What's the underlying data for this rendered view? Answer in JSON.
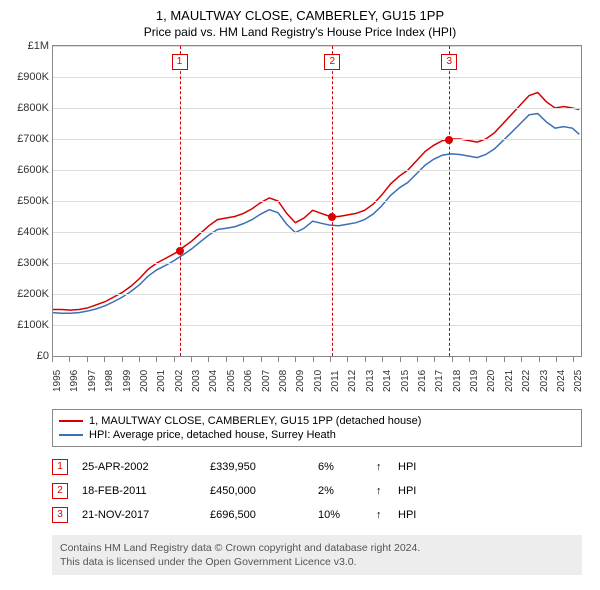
{
  "title": "1, MAULTWAY CLOSE, CAMBERLEY, GU15 1PP",
  "subtitle": "Price paid vs. HM Land Registry's House Price Index (HPI)",
  "chart": {
    "type": "line",
    "background_color": "#ffffff",
    "grid_color": "#dddddd",
    "border_color": "#888888",
    "x_years": [
      1995,
      1996,
      1997,
      1998,
      1999,
      2000,
      2001,
      2002,
      2003,
      2004,
      2005,
      2006,
      2007,
      2008,
      2009,
      2010,
      2011,
      2012,
      2013,
      2014,
      2015,
      2016,
      2017,
      2018,
      2019,
      2020,
      2021,
      2022,
      2023,
      2024,
      2025
    ],
    "xlim": [
      1995,
      2025.5
    ],
    "ylim": [
      0,
      1000000
    ],
    "ytick_step": 100000,
    "yticks": [
      "£0",
      "£100K",
      "£200K",
      "£300K",
      "£400K",
      "£500K",
      "£600K",
      "£700K",
      "£800K",
      "£900K",
      "£1M"
    ],
    "title_fontsize": 13,
    "label_fontsize": 11,
    "line_width": 1.5,
    "marker_dash_color": "#d00000",
    "series": [
      {
        "name": "price_paid",
        "label": "1, MAULTWAY CLOSE, CAMBERLEY, GU15 1PP (detached house)",
        "color": "#d40000",
        "data": [
          [
            1995.0,
            150000
          ],
          [
            1995.5,
            150000
          ],
          [
            1996.0,
            148000
          ],
          [
            1996.5,
            150000
          ],
          [
            1997.0,
            155000
          ],
          [
            1997.5,
            165000
          ],
          [
            1998.0,
            175000
          ],
          [
            1998.5,
            190000
          ],
          [
            1999.0,
            205000
          ],
          [
            1999.5,
            225000
          ],
          [
            2000.0,
            250000
          ],
          [
            2000.5,
            280000
          ],
          [
            2001.0,
            300000
          ],
          [
            2001.5,
            315000
          ],
          [
            2002.0,
            330000
          ],
          [
            2002.31,
            339950
          ],
          [
            2002.5,
            350000
          ],
          [
            2003.0,
            370000
          ],
          [
            2003.5,
            395000
          ],
          [
            2004.0,
            420000
          ],
          [
            2004.5,
            440000
          ],
          [
            2005.0,
            445000
          ],
          [
            2005.5,
            450000
          ],
          [
            2006.0,
            460000
          ],
          [
            2006.5,
            475000
          ],
          [
            2007.0,
            495000
          ],
          [
            2007.5,
            510000
          ],
          [
            2008.0,
            500000
          ],
          [
            2008.5,
            460000
          ],
          [
            2009.0,
            430000
          ],
          [
            2009.5,
            445000
          ],
          [
            2010.0,
            470000
          ],
          [
            2010.5,
            460000
          ],
          [
            2011.0,
            450000
          ],
          [
            2011.13,
            450000
          ],
          [
            2011.5,
            450000
          ],
          [
            2012.0,
            455000
          ],
          [
            2012.5,
            460000
          ],
          [
            2013.0,
            470000
          ],
          [
            2013.5,
            490000
          ],
          [
            2014.0,
            520000
          ],
          [
            2014.5,
            555000
          ],
          [
            2015.0,
            580000
          ],
          [
            2015.5,
            600000
          ],
          [
            2016.0,
            630000
          ],
          [
            2016.5,
            660000
          ],
          [
            2017.0,
            680000
          ],
          [
            2017.5,
            695000
          ],
          [
            2017.89,
            696500
          ],
          [
            2018.0,
            700000
          ],
          [
            2018.5,
            700000
          ],
          [
            2019.0,
            695000
          ],
          [
            2019.5,
            690000
          ],
          [
            2020.0,
            700000
          ],
          [
            2020.5,
            720000
          ],
          [
            2021.0,
            750000
          ],
          [
            2021.5,
            780000
          ],
          [
            2022.0,
            810000
          ],
          [
            2022.5,
            840000
          ],
          [
            2023.0,
            850000
          ],
          [
            2023.5,
            820000
          ],
          [
            2024.0,
            800000
          ],
          [
            2024.5,
            805000
          ],
          [
            2025.0,
            800000
          ],
          [
            2025.4,
            795000
          ]
        ]
      },
      {
        "name": "hpi",
        "label": "HPI: Average price, detached house, Surrey Heath",
        "color": "#3b6fb6",
        "data": [
          [
            1995.0,
            140000
          ],
          [
            1995.5,
            138000
          ],
          [
            1996.0,
            138000
          ],
          [
            1996.5,
            140000
          ],
          [
            1997.0,
            145000
          ],
          [
            1997.5,
            152000
          ],
          [
            1998.0,
            162000
          ],
          [
            1998.5,
            175000
          ],
          [
            1999.0,
            190000
          ],
          [
            1999.5,
            208000
          ],
          [
            2000.0,
            230000
          ],
          [
            2000.5,
            258000
          ],
          [
            2001.0,
            278000
          ],
          [
            2001.5,
            292000
          ],
          [
            2002.0,
            308000
          ],
          [
            2002.5,
            326000
          ],
          [
            2003.0,
            345000
          ],
          [
            2003.5,
            368000
          ],
          [
            2004.0,
            390000
          ],
          [
            2004.5,
            408000
          ],
          [
            2005.0,
            412000
          ],
          [
            2005.5,
            417000
          ],
          [
            2006.0,
            427000
          ],
          [
            2006.5,
            440000
          ],
          [
            2007.0,
            458000
          ],
          [
            2007.5,
            472000
          ],
          [
            2008.0,
            462000
          ],
          [
            2008.5,
            425000
          ],
          [
            2009.0,
            398000
          ],
          [
            2009.5,
            412000
          ],
          [
            2010.0,
            435000
          ],
          [
            2010.5,
            428000
          ],
          [
            2011.0,
            422000
          ],
          [
            2011.5,
            420000
          ],
          [
            2012.0,
            425000
          ],
          [
            2012.5,
            430000
          ],
          [
            2013.0,
            440000
          ],
          [
            2013.5,
            458000
          ],
          [
            2014.0,
            485000
          ],
          [
            2014.5,
            518000
          ],
          [
            2015.0,
            542000
          ],
          [
            2015.5,
            560000
          ],
          [
            2016.0,
            588000
          ],
          [
            2016.5,
            616000
          ],
          [
            2017.0,
            635000
          ],
          [
            2017.5,
            648000
          ],
          [
            2018.0,
            652000
          ],
          [
            2018.5,
            650000
          ],
          [
            2019.0,
            645000
          ],
          [
            2019.5,
            640000
          ],
          [
            2020.0,
            650000
          ],
          [
            2020.5,
            668000
          ],
          [
            2021.0,
            695000
          ],
          [
            2021.5,
            722000
          ],
          [
            2022.0,
            750000
          ],
          [
            2022.5,
            778000
          ],
          [
            2023.0,
            782000
          ],
          [
            2023.5,
            755000
          ],
          [
            2024.0,
            735000
          ],
          [
            2024.5,
            740000
          ],
          [
            2025.0,
            735000
          ],
          [
            2025.4,
            715000
          ]
        ]
      }
    ],
    "markers": [
      {
        "n": "1",
        "x": 2002.31,
        "y": 339950
      },
      {
        "n": "2",
        "x": 2011.13,
        "y": 450000
      },
      {
        "n": "3",
        "x": 2017.89,
        "y": 696500
      }
    ]
  },
  "legend": {
    "items": [
      {
        "color": "#d40000",
        "label": "1, MAULTWAY CLOSE, CAMBERLEY, GU15 1PP (detached house)"
      },
      {
        "color": "#3b6fb6",
        "label": "HPI: Average price, detached house, Surrey Heath"
      }
    ]
  },
  "sales": [
    {
      "n": "1",
      "date": "25-APR-2002",
      "price": "£339,950",
      "pct": "6%",
      "vs": "HPI"
    },
    {
      "n": "2",
      "date": "18-FEB-2011",
      "price": "£450,000",
      "pct": "2%",
      "vs": "HPI"
    },
    {
      "n": "3",
      "date": "21-NOV-2017",
      "price": "£696,500",
      "pct": "10%",
      "vs": "HPI"
    }
  ],
  "footer": {
    "line1": "Contains HM Land Registry data © Crown copyright and database right 2024.",
    "line2": "This data is licensed under the Open Government Licence v3.0."
  }
}
